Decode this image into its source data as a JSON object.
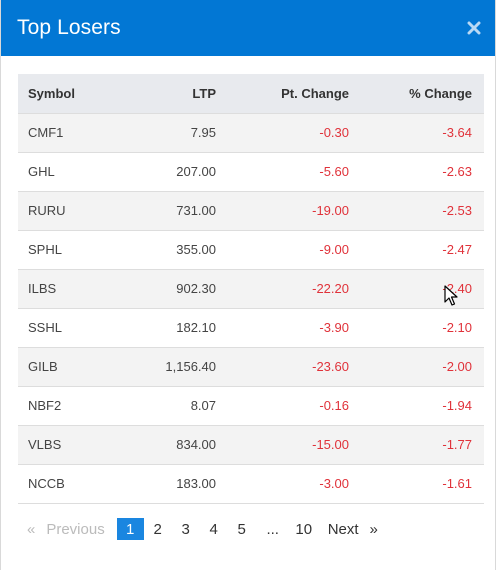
{
  "modal": {
    "title": "Top Losers",
    "close_icon": "close-icon",
    "header_color": "#0277d4"
  },
  "table": {
    "headers": {
      "symbol": "Symbol",
      "ltp": "LTP",
      "pt_change": "Pt. Change",
      "pct_change": "% Change"
    },
    "rows": [
      {
        "symbol": "CMF1",
        "ltp": "7.95",
        "pt_change": "-0.30",
        "pct_change": "-3.64"
      },
      {
        "symbol": "GHL",
        "ltp": "207.00",
        "pt_change": "-5.60",
        "pct_change": "-2.63"
      },
      {
        "symbol": "RURU",
        "ltp": "731.00",
        "pt_change": "-19.00",
        "pct_change": "-2.53"
      },
      {
        "symbol": "SPHL",
        "ltp": "355.00",
        "pt_change": "-9.00",
        "pct_change": "-2.47"
      },
      {
        "symbol": "ILBS",
        "ltp": "902.30",
        "pt_change": "-22.20",
        "pct_change": "-2.40"
      },
      {
        "symbol": "SSHL",
        "ltp": "182.10",
        "pt_change": "-3.90",
        "pct_change": "-2.10"
      },
      {
        "symbol": "GILB",
        "ltp": "1,156.40",
        "pt_change": "-23.60",
        "pct_change": "-2.00"
      },
      {
        "symbol": "NBF2",
        "ltp": "8.07",
        "pt_change": "-0.16",
        "pct_change": "-1.94"
      },
      {
        "symbol": "VLBS",
        "ltp": "834.00",
        "pt_change": "-15.00",
        "pct_change": "-1.77"
      },
      {
        "symbol": "NCCB",
        "ltp": "183.00",
        "pt_change": "-3.00",
        "pct_change": "-1.61"
      }
    ],
    "negative_color": "#e0323a"
  },
  "pagination": {
    "prev_arrow": "«",
    "prev_label": "Previous",
    "pages": [
      "1",
      "2",
      "3",
      "4",
      "5"
    ],
    "active_page": "1",
    "ellipsis": "...",
    "last_page": "10",
    "next_label": "Next",
    "next_arrow": "»",
    "active_color": "#1a86e0"
  }
}
